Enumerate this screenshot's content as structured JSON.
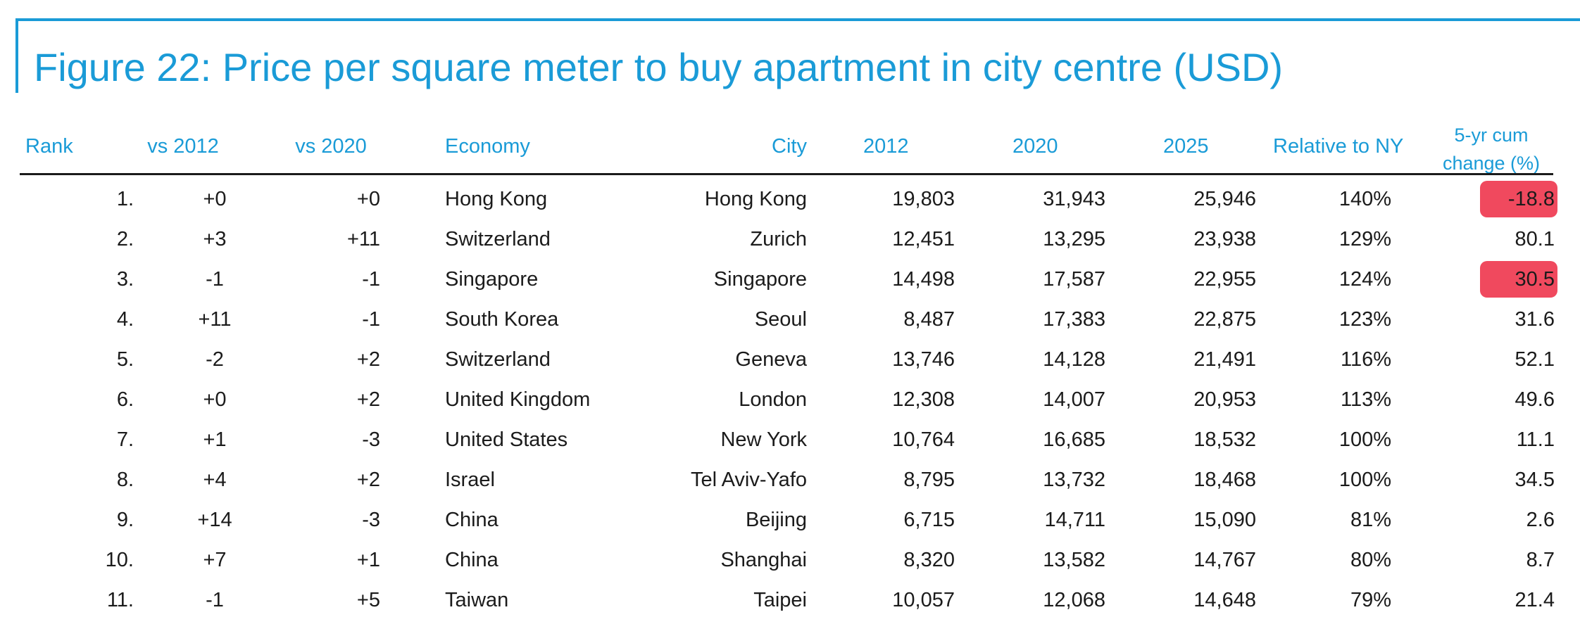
{
  "title": "Figure 22: Price per square meter to buy apartment in city centre (USD)",
  "colors": {
    "accent": "#1a9bd7",
    "text": "#1b1b1b",
    "highlight": "#f0495e"
  },
  "chart_data": {
    "type": "table",
    "title": "Figure 22: Price per square meter to buy apartment in city centre (USD)",
    "columns": [
      "Rank",
      "vs 2012",
      "vs 2020",
      "Economy",
      "City",
      "2012",
      "2020",
      "2025",
      "Relative to NY",
      "5-yr cum change (%)"
    ],
    "rows": [
      {
        "rank": "1.",
        "vs2012": "+0",
        "vs2020": "+0",
        "economy": "Hong Kong",
        "city": "Hong Kong",
        "y2012": "19,803",
        "y2020": "31,943",
        "y2025": "25,946",
        "relny": "140%",
        "cum": "-18.8",
        "highlighted": true
      },
      {
        "rank": "2.",
        "vs2012": "+3",
        "vs2020": "+11",
        "economy": "Switzerland",
        "city": "Zurich",
        "y2012": "12,451",
        "y2020": "13,295",
        "y2025": "23,938",
        "relny": "129%",
        "cum": "80.1",
        "highlighted": false
      },
      {
        "rank": "3.",
        "vs2012": "-1",
        "vs2020": "-1",
        "economy": "Singapore",
        "city": "Singapore",
        "y2012": "14,498",
        "y2020": "17,587",
        "y2025": "22,955",
        "relny": "124%",
        "cum": "30.5",
        "highlighted": true
      },
      {
        "rank": "4.",
        "vs2012": "+11",
        "vs2020": "-1",
        "economy": "South Korea",
        "city": "Seoul",
        "y2012": "8,487",
        "y2020": "17,383",
        "y2025": "22,875",
        "relny": "123%",
        "cum": "31.6",
        "highlighted": false
      },
      {
        "rank": "5.",
        "vs2012": "-2",
        "vs2020": "+2",
        "economy": "Switzerland",
        "city": "Geneva",
        "y2012": "13,746",
        "y2020": "14,128",
        "y2025": "21,491",
        "relny": "116%",
        "cum": "52.1",
        "highlighted": false
      },
      {
        "rank": "6.",
        "vs2012": "+0",
        "vs2020": "+2",
        "economy": "United Kingdom",
        "city": "London",
        "y2012": "12,308",
        "y2020": "14,007",
        "y2025": "20,953",
        "relny": "113%",
        "cum": "49.6",
        "highlighted": false
      },
      {
        "rank": "7.",
        "vs2012": "+1",
        "vs2020": "-3",
        "economy": "United States",
        "city": "New York",
        "y2012": "10,764",
        "y2020": "16,685",
        "y2025": "18,532",
        "relny": "100%",
        "cum": "11.1",
        "highlighted": false
      },
      {
        "rank": "8.",
        "vs2012": "+4",
        "vs2020": "+2",
        "economy": "Israel",
        "city": "Tel Aviv-Yafo",
        "y2012": "8,795",
        "y2020": "13,732",
        "y2025": "18,468",
        "relny": "100%",
        "cum": "34.5",
        "highlighted": false
      },
      {
        "rank": "9.",
        "vs2012": "+14",
        "vs2020": "-3",
        "economy": "China",
        "city": "Beijing",
        "y2012": "6,715",
        "y2020": "14,711",
        "y2025": "15,090",
        "relny": "81%",
        "cum": "2.6",
        "highlighted": false
      },
      {
        "rank": "10.",
        "vs2012": "+7",
        "vs2020": "+1",
        "economy": "China",
        "city": "Shanghai",
        "y2012": "8,320",
        "y2020": "13,582",
        "y2025": "14,767",
        "relny": "80%",
        "cum": "8.7",
        "highlighted": false
      },
      {
        "rank": "11.",
        "vs2012": "-1",
        "vs2020": "+5",
        "economy": "Taiwan",
        "city": "Taipei",
        "y2012": "10,057",
        "y2020": "12,068",
        "y2025": "14,648",
        "relny": "79%",
        "cum": "21.4",
        "highlighted": false
      }
    ]
  },
  "headers": {
    "rank": "Rank",
    "vs2012": "vs 2012",
    "vs2020": "vs 2020",
    "economy": "Economy",
    "city": "City",
    "y2012": "2012",
    "y2020": "2020",
    "y2025": "2025",
    "relny": "Relative to NY",
    "cum_line1": "5-yr cum",
    "cum_line2": "change (%)"
  }
}
